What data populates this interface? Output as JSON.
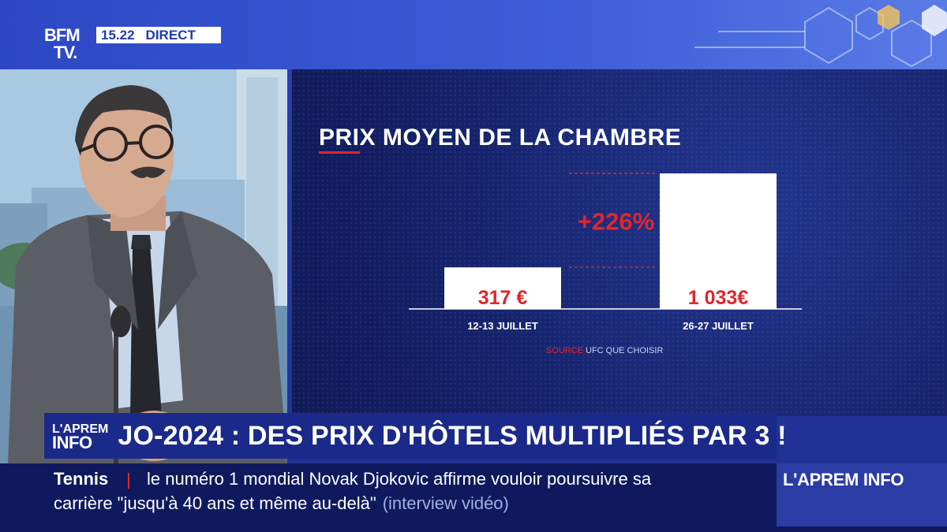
{
  "header": {
    "logo_line1": "BFM",
    "logo_line2": "TV.",
    "time": "15.22",
    "live": "DIRECT"
  },
  "chart_data": {
    "type": "bar",
    "title": "PRIX MOYEN DE LA CHAMBRE",
    "categories": [
      "12-13 JUILLET",
      "26-27 JUILLET"
    ],
    "values": [
      317,
      1033
    ],
    "value_labels": [
      "317 €",
      "1 033€"
    ],
    "unit": "€",
    "annotation": "+226%",
    "source_label": "SOURCE",
    "source_text": "UFC QUE CHOISIR",
    "ylim": [
      0,
      1033
    ],
    "colors": {
      "bar": "#ffffff",
      "label": "#e0262b",
      "annotation": "#e0262b",
      "axis": "#ffffff"
    }
  },
  "headline": {
    "logo_top": "L'APREM",
    "logo_bottom": "INFO",
    "text": "JO-2024 : DES PRIX D'HÔTELS MULTIPLIÉS PAR 3 !"
  },
  "ticker": {
    "category": "Tennis",
    "line1": "le numéro 1 mondial Novak Djokovic affirme vouloir poursuivre sa",
    "line2": "carrière \"jusqu'à 40 ans et même au-delà\"",
    "line2_extra": "(interview vidéo)",
    "brand": "L'APREM INFO"
  }
}
